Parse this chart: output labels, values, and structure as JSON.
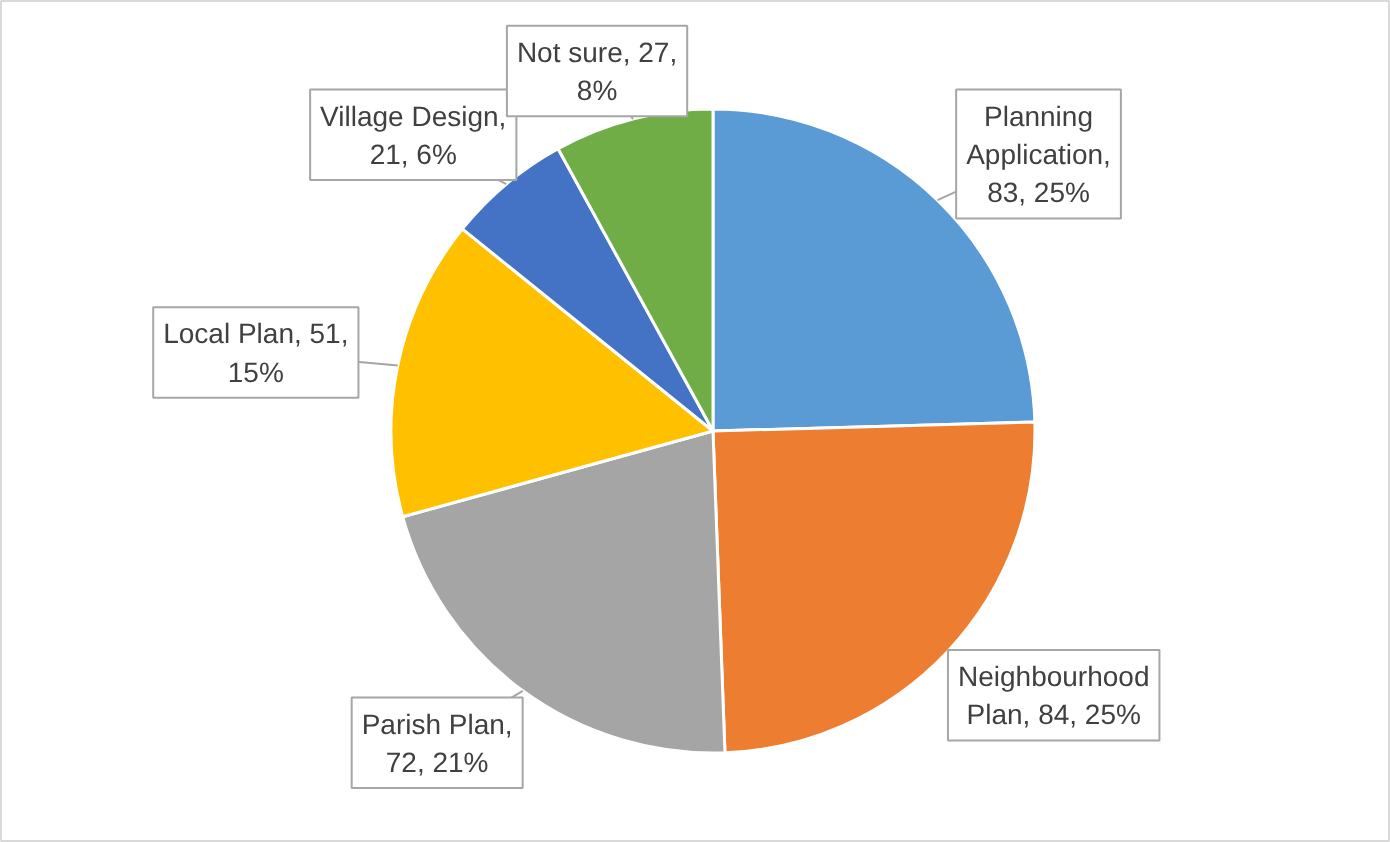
{
  "chart_data": {
    "type": "pie",
    "categories": [
      "Planning Application",
      "Neighbourhood Plan",
      "Parish Plan",
      "Local Plan",
      "Village Design",
      "Not sure"
    ],
    "values": [
      83,
      84,
      72,
      51,
      21,
      27
    ],
    "colors": [
      "#5b9bd5",
      "#ed7d31",
      "#a5a5a5",
      "#ffc000",
      "#4472c4",
      "#70ad47"
    ],
    "value_labels": [
      ", 83, 25%",
      ", 84, 25%",
      ", 72, 21%",
      ", 51, 15%",
      ", 21, 6%",
      ", 27, 8%"
    ],
    "legend": false
  }
}
